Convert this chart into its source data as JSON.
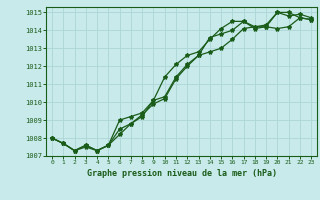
{
  "title": "Graphe pression niveau de la mer (hPa)",
  "bg_color": "#c8eaea",
  "grid_color": "#b0d8d8",
  "line_color": "#1a5c1a",
  "marker_color": "#1a5c1a",
  "xlim": [
    -0.5,
    23.5
  ],
  "ylim": [
    1007,
    1015.3
  ],
  "xticks": [
    0,
    1,
    2,
    3,
    4,
    5,
    6,
    7,
    8,
    9,
    10,
    11,
    12,
    13,
    14,
    15,
    16,
    17,
    18,
    19,
    20,
    21,
    22,
    23
  ],
  "yticks": [
    1007,
    1008,
    1009,
    1010,
    1011,
    1012,
    1013,
    1014,
    1015
  ],
  "series": [
    [
      1008.0,
      1007.7,
      1007.3,
      1007.6,
      1007.3,
      1007.6,
      1008.2,
      1008.8,
      1009.2,
      1010.1,
      1011.4,
      1012.1,
      1012.6,
      1012.8,
      1013.5,
      1014.1,
      1014.5,
      1014.5,
      1014.1,
      1014.2,
      1015.0,
      1015.0,
      1014.7,
      1014.6
    ],
    [
      1008.0,
      1007.7,
      1007.3,
      1007.6,
      1007.3,
      1007.6,
      1009.0,
      1009.2,
      1009.4,
      1010.1,
      1010.3,
      1011.4,
      1012.1,
      1012.6,
      1012.8,
      1013.0,
      1013.5,
      1014.1,
      1014.2,
      1014.2,
      1014.1,
      1014.2,
      1014.7,
      1014.6
    ],
    [
      1008.0,
      1007.7,
      1007.3,
      1007.5,
      1007.3,
      1007.6,
      1008.5,
      1008.8,
      1009.3,
      1009.9,
      1010.2,
      1011.3,
      1012.0,
      1012.6,
      1013.6,
      1013.8,
      1014.0,
      1014.5,
      1014.2,
      1014.3,
      1015.0,
      1014.8,
      1014.9,
      1014.7
    ]
  ]
}
